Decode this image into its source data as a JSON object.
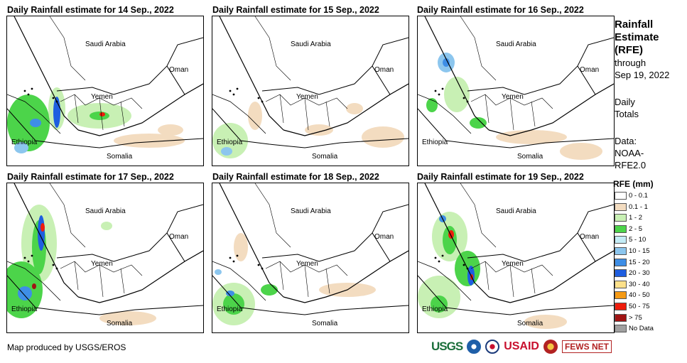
{
  "panels": [
    {
      "title": "Daily Rainfall estimate for 14 Sep., 2022",
      "level": "heavy-west"
    },
    {
      "title": "Daily Rainfall estimate for 15 Sep., 2022",
      "level": "light"
    },
    {
      "title": "Daily Rainfall estimate for 16 Sep., 2022",
      "level": "moderate"
    },
    {
      "title": "Daily Rainfall estimate for 17 Sep., 2022",
      "level": "heavy-coast"
    },
    {
      "title": "Daily Rainfall estimate for 18 Sep., 2022",
      "level": "moderate-south"
    },
    {
      "title": "Daily Rainfall estimate for 19 Sep., 2022",
      "level": "heavy-yemen"
    }
  ],
  "map_labels": {
    "saudi": "Saudi Arabia",
    "oman": "Oman",
    "yemen": "Yemen",
    "ethiopia": "Ethiopia",
    "somalia": "Somalia"
  },
  "legend": {
    "title": "Rainfall Estimate (RFE)",
    "through": "through",
    "date": "Sep 19, 2022",
    "daily": "Daily",
    "totals": "Totals",
    "data_label": "Data:",
    "data_value1": "NOAA-",
    "data_value2": "RFE2.0",
    "rfe_header": "RFE (mm)",
    "classes": [
      {
        "label": "0 - 0.1",
        "color": "#ffffff"
      },
      {
        "label": "0.1 - 1",
        "color": "#f3dcc0"
      },
      {
        "label": "1 - 2",
        "color": "#c8f0b4"
      },
      {
        "label": "2 - 5",
        "color": "#4cd44a"
      },
      {
        "label": "5 - 10",
        "color": "#c4ecf6"
      },
      {
        "label": "10 - 15",
        "color": "#8cc6ee"
      },
      {
        "label": "15 - 20",
        "color": "#3e8ee6"
      },
      {
        "label": "20 - 30",
        "color": "#1e5ee0"
      },
      {
        "label": "30 - 40",
        "color": "#fce08a"
      },
      {
        "label": "40 - 50",
        "color": "#f59a14"
      },
      {
        "label": "50 - 75",
        "color": "#ee1c0c"
      },
      {
        "label": "> 75",
        "color": "#a01414"
      },
      {
        "label": "No Data",
        "color": "#a0a0a0"
      }
    ]
  },
  "credit": "Map produced by USGS/EROS",
  "logos": {
    "usgs": "USGS",
    "usaid": "USAID",
    "fews": "FEWS NET"
  }
}
